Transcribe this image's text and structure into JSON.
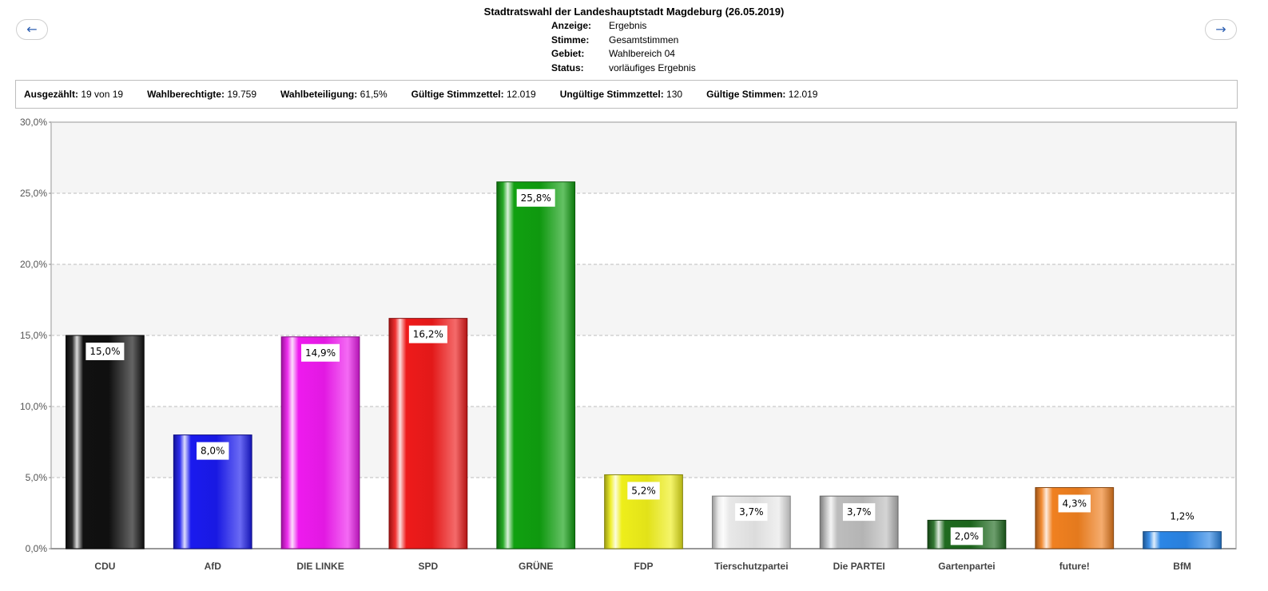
{
  "nav": {
    "prev_label": "←",
    "next_label": "→"
  },
  "header": {
    "title": "Stadtratswahl der Landeshauptstadt Magdeburg (26.05.2019)",
    "meta": [
      {
        "key": "Anzeige:",
        "value": "Ergebnis"
      },
      {
        "key": "Stimme:",
        "value": "Gesamtstimmen"
      },
      {
        "key": "Gebiet:",
        "value": "Wahlbereich 04"
      },
      {
        "key": "Status:",
        "value": "vorläufiges Ergebnis"
      }
    ]
  },
  "stats": [
    {
      "label": "Ausgezählt:",
      "value": "19 von 19"
    },
    {
      "label": "Wahlberechtigte:",
      "value": "19.759"
    },
    {
      "label": "Wahlbeteiligung:",
      "value": "61,5%"
    },
    {
      "label": "Gültige Stimmzettel:",
      "value": "12.019"
    },
    {
      "label": "Ungültige Stimmzettel:",
      "value": "130"
    },
    {
      "label": "Gültige Stimmen:",
      "value": "12.019"
    }
  ],
  "chart_data": {
    "type": "bar",
    "categories": [
      "CDU",
      "AfD",
      "DIE LINKE",
      "SPD",
      "GRÜNE",
      "FDP",
      "Tierschutzpartei",
      "Die PARTEI",
      "Gartenpartei",
      "future!",
      "BfM"
    ],
    "values": [
      15.0,
      8.0,
      14.9,
      16.2,
      25.8,
      5.2,
      3.7,
      3.7,
      2.0,
      4.3,
      1.2
    ],
    "value_labels": [
      "15,0%",
      "8,0%",
      "14,9%",
      "16,2%",
      "25,8%",
      "5,2%",
      "3,7%",
      "3,7%",
      "2,0%",
      "4,3%",
      "1,2%"
    ],
    "colors": [
      "#111111",
      "#1a1aee",
      "#ee1aee",
      "#ee1a1a",
      "#10a010",
      "#eeee1a",
      "#e8e8e8",
      "#bdbdbd",
      "#1f6a1f",
      "#f08020",
      "#2b86e6"
    ],
    "ylim": [
      0,
      30
    ],
    "yticks": [
      0,
      5,
      10,
      15,
      20,
      25,
      30
    ],
    "ytick_labels": [
      "0,0%",
      "5,0%",
      "10,0%",
      "15,0%",
      "20,0%",
      "25,0%",
      "30,0%"
    ],
    "grid": true
  }
}
